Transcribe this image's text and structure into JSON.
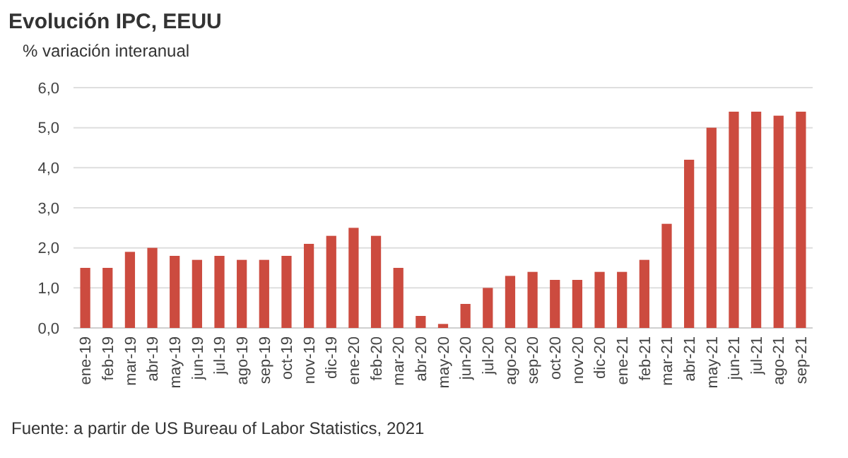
{
  "chart_data": {
    "type": "bar",
    "title": "Evolución IPC, EEUU",
    "subtitle": "% variación interanual",
    "categories": [
      "ene-19",
      "feb-19",
      "mar-19",
      "abr-19",
      "may-19",
      "jun-19",
      "jul-19",
      "ago-19",
      "sep-19",
      "oct-19",
      "nov-19",
      "dic-19",
      "ene-20",
      "feb-20",
      "mar-20",
      "abr-20",
      "may-20",
      "jun-20",
      "jul-20",
      "ago-20",
      "sep-20",
      "oct-20",
      "nov-20",
      "dic-20",
      "ene-21",
      "feb-21",
      "mar-21",
      "abr-21",
      "may-21",
      "jun-21",
      "jul-21",
      "ago-21",
      "sep-21"
    ],
    "values": [
      1.5,
      1.5,
      1.9,
      2.0,
      1.8,
      1.7,
      1.8,
      1.7,
      1.7,
      1.8,
      2.1,
      2.3,
      2.5,
      2.3,
      1.5,
      0.3,
      0.1,
      0.6,
      1.0,
      1.3,
      1.4,
      1.2,
      1.2,
      1.4,
      1.4,
      1.7,
      2.6,
      4.2,
      5.0,
      5.4,
      5.4,
      5.3,
      5.4
    ],
    "color": "#cc4b3f",
    "ylim": [
      0,
      6
    ],
    "yticks": [
      {
        "value": 0,
        "label": "0,0"
      },
      {
        "value": 1,
        "label": "1,0"
      },
      {
        "value": 2,
        "label": "2,0"
      },
      {
        "value": 3,
        "label": "3,0"
      },
      {
        "value": 4,
        "label": "4,0"
      },
      {
        "value": 5,
        "label": "5,0"
      },
      {
        "value": 6,
        "label": "6,0"
      }
    ],
    "grid": "y",
    "annotations": [
      "Fuente: a partir de US Bureau of Labor Statistics, 2021"
    ]
  }
}
